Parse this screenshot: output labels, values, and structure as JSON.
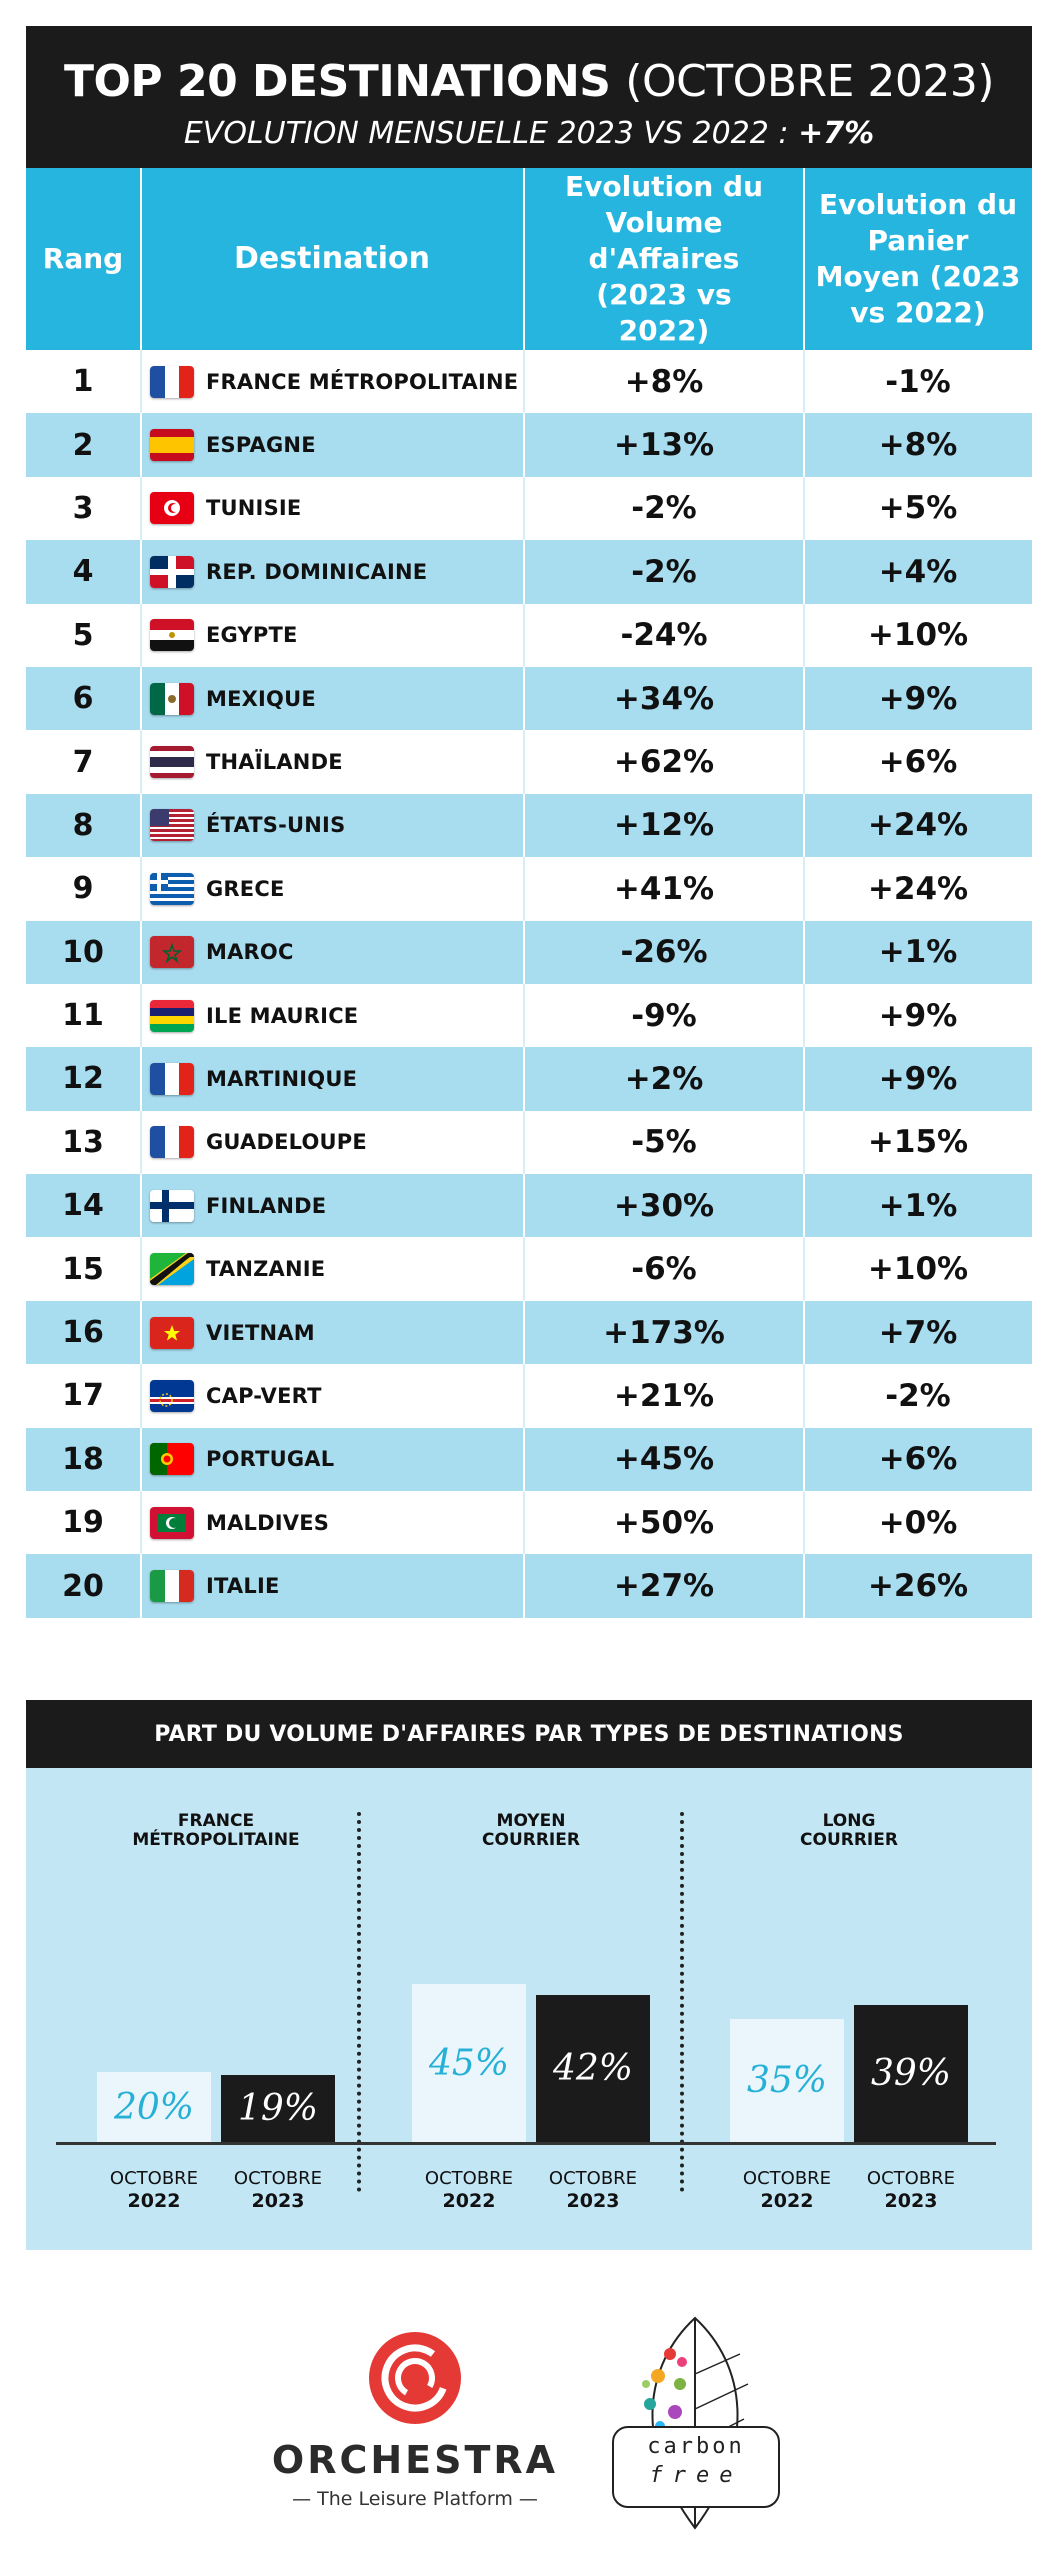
{
  "header": {
    "title_bold": "TOP 20 DESTINATIONS",
    "title_light": "(OCTOBRE 2023)",
    "subtitle": "EVOLUTION MENSUELLE 2023 VS 2022 :",
    "subtitle_value": "+7%"
  },
  "table": {
    "columns": {
      "rang": "Rang",
      "destination": "Destination",
      "volume": "Evolution du Volume d'Affaires (2023 vs 2022)",
      "panier": "Evolution du Panier Moyen (2023 vs 2022)"
    },
    "rows": [
      {
        "rank": "1",
        "flag": "france-flag",
        "name": "FRANCE MÉTROPOLITAINE",
        "volume": "+8%",
        "panier": "-1%"
      },
      {
        "rank": "2",
        "flag": "spain-flag",
        "name": "ESPAGNE",
        "volume": "+13%",
        "panier": "+8%"
      },
      {
        "rank": "3",
        "flag": "tunisia-flag",
        "name": "TUNISIE",
        "volume": "-2%",
        "panier": "+5%"
      },
      {
        "rank": "4",
        "flag": "dominican-republic-flag",
        "name": "REP. DOMINICAINE",
        "volume": "-2%",
        "panier": "+4%"
      },
      {
        "rank": "5",
        "flag": "egypt-flag",
        "name": "EGYPTE",
        "volume": "-24%",
        "panier": "+10%"
      },
      {
        "rank": "6",
        "flag": "mexico-flag",
        "name": "MEXIQUE",
        "volume": "+34%",
        "panier": "+9%"
      },
      {
        "rank": "7",
        "flag": "thailand-flag",
        "name": "THAÏLANDE",
        "volume": "+62%",
        "panier": "+6%"
      },
      {
        "rank": "8",
        "flag": "usa-flag",
        "name": "ÉTATS-UNIS",
        "volume": "+12%",
        "panier": "+24%"
      },
      {
        "rank": "9",
        "flag": "greece-flag",
        "name": "GRECE",
        "volume": "+41%",
        "panier": "+24%"
      },
      {
        "rank": "10",
        "flag": "morocco-flag",
        "name": "MAROC",
        "volume": "-26%",
        "panier": "+1%"
      },
      {
        "rank": "11",
        "flag": "mauritius-flag",
        "name": "ILE MAURICE",
        "volume": "-9%",
        "panier": "+9%"
      },
      {
        "rank": "12",
        "flag": "france-flag",
        "name": "MARTINIQUE",
        "volume": "+2%",
        "panier": "+9%"
      },
      {
        "rank": "13",
        "flag": "france-flag",
        "name": "GUADELOUPE",
        "volume": "-5%",
        "panier": "+15%"
      },
      {
        "rank": "14",
        "flag": "finland-flag",
        "name": "FINLANDE",
        "volume": "+30%",
        "panier": "+1%"
      },
      {
        "rank": "15",
        "flag": "tanzania-flag",
        "name": "TANZANIE",
        "volume": "-6%",
        "panier": "+10%"
      },
      {
        "rank": "16",
        "flag": "vietnam-flag",
        "name": "VIETNAM",
        "volume": "+173%",
        "panier": "+7%"
      },
      {
        "rank": "17",
        "flag": "cape-verde-flag",
        "name": "CAP-VERT",
        "volume": "+21%",
        "panier": "-2%"
      },
      {
        "rank": "18",
        "flag": "portugal-flag",
        "name": "PORTUGAL",
        "volume": "+45%",
        "panier": "+6%"
      },
      {
        "rank": "19",
        "flag": "maldives-flag",
        "name": "MALDIVES",
        "volume": "+50%",
        "panier": "+0%"
      },
      {
        "rank": "20",
        "flag": "italy-flag",
        "name": "ITALIE",
        "volume": "+27%",
        "panier": "+26%"
      }
    ]
  },
  "share": {
    "title": "PART DU VOLUME D'AFFAIRES PAR TYPES DE DESTINATIONS",
    "period_word": "OCTOBRE"
  },
  "chart_data": {
    "type": "bar",
    "title": "PART DU VOLUME D'AFFAIRES PAR TYPES DE DESTINATIONS",
    "categories": [
      "FRANCE\nMÉTROPOLITAINE",
      "MOYEN\nCOURRIER",
      "LONG\nCOURRIER"
    ],
    "series": [
      {
        "name": "2022",
        "values": [
          20,
          45,
          35
        ],
        "labels": [
          "20%",
          "45%",
          "35%"
        ],
        "color": "#eaf6fb",
        "text_color": "#27b0d6"
      },
      {
        "name": "2023",
        "values": [
          19,
          42,
          39
        ],
        "labels": [
          "19%",
          "42%",
          "39%"
        ],
        "color": "#1c1b1b",
        "text_color": "#ffffff"
      }
    ],
    "ylim": [
      0,
      50
    ],
    "unit": "%"
  },
  "logos": {
    "orchestra_name": "ORCHESTRA",
    "orchestra_tagline": "— The Leisure Platform —",
    "carbon_line1": "carbon",
    "carbon_line2": "free"
  },
  "colors": {
    "header_bg": "#1c1b1b",
    "table_header": "#25b5df",
    "row_alt": "#a8dcef",
    "panel_bg": "#c3e6f5",
    "accent_red": "#e53935"
  }
}
